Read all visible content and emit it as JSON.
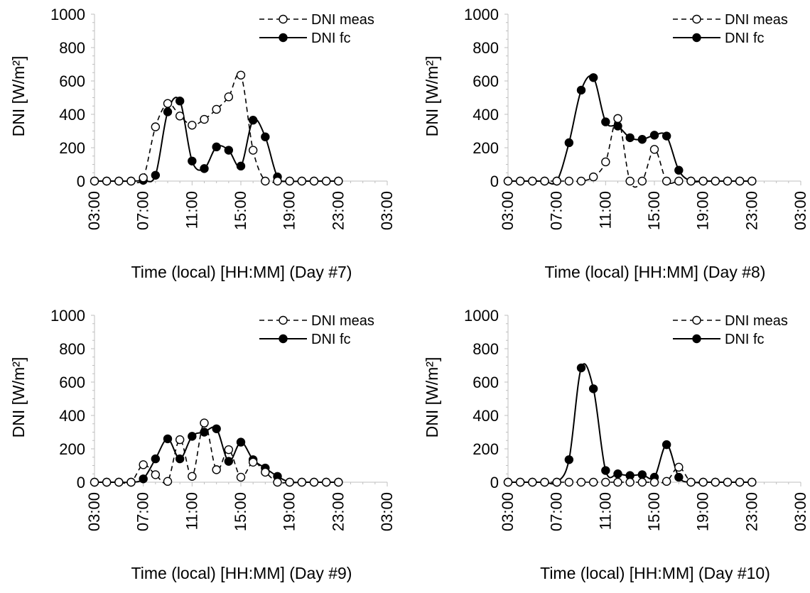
{
  "chart_data": [
    {
      "type": "line",
      "title": "",
      "xlabel": "Time (local) [HH:MM] (Day #7)",
      "ylabel": "DNI [W/m²]",
      "ylim": [
        0,
        1000
      ],
      "y_ticks": [
        "0",
        "200",
        "400",
        "600",
        "800",
        "1000"
      ],
      "xlim": [
        "03:00",
        "27:00"
      ],
      "x_tick_labels": [
        "03:00",
        "07:00",
        "11:00",
        "15:00",
        "19:00",
        "23:00",
        "03:00"
      ],
      "grid": false,
      "legend_position": "top-right",
      "x": [
        "03:00",
        "04:00",
        "05:00",
        "06:00",
        "07:00",
        "08:00",
        "09:00",
        "10:00",
        "11:00",
        "12:00",
        "13:00",
        "14:00",
        "15:00",
        "16:00",
        "17:00",
        "18:00",
        "19:00",
        "20:00",
        "21:00",
        "22:00",
        "23:00"
      ],
      "series": [
        {
          "name": "DNI meas",
          "style": "dashed-open-marker",
          "values": [
            0,
            0,
            0,
            0,
            20,
            325,
            465,
            390,
            335,
            370,
            430,
            505,
            635,
            185,
            0,
            0,
            0,
            0,
            0,
            0,
            0
          ]
        },
        {
          "name": "DNI fc",
          "style": "solid-filled-marker",
          "values": [
            0,
            0,
            0,
            0,
            5,
            35,
            415,
            480,
            120,
            75,
            205,
            185,
            90,
            365,
            265,
            25,
            0,
            0,
            0,
            0,
            0
          ]
        }
      ]
    },
    {
      "type": "line",
      "title": "",
      "xlabel": "Time (local) [HH:MM] (Day #8)",
      "ylabel": "DNI [W/m²]",
      "ylim": [
        0,
        1000
      ],
      "y_ticks": [
        "0",
        "200",
        "400",
        "600",
        "800",
        "1000"
      ],
      "xlim": [
        "03:00",
        "27:00"
      ],
      "x_tick_labels": [
        "03:00",
        "07:00",
        "11:00",
        "15:00",
        "19:00",
        "23:00",
        "03:00"
      ],
      "grid": false,
      "legend_position": "top-right",
      "x": [
        "03:00",
        "04:00",
        "05:00",
        "06:00",
        "07:00",
        "08:00",
        "09:00",
        "10:00",
        "11:00",
        "12:00",
        "13:00",
        "14:00",
        "15:00",
        "16:00",
        "17:00",
        "18:00",
        "19:00",
        "20:00",
        "21:00",
        "22:00",
        "23:00"
      ],
      "series": [
        {
          "name": "DNI meas",
          "style": "dashed-open-marker",
          "values": [
            0,
            0,
            0,
            0,
            0,
            0,
            0,
            25,
            115,
            375,
            0,
            0,
            190,
            0,
            0,
            0,
            0,
            0,
            0,
            0,
            0
          ]
        },
        {
          "name": "DNI fc",
          "style": "solid-filled-marker",
          "values": [
            0,
            0,
            0,
            0,
            0,
            230,
            545,
            620,
            355,
            330,
            260,
            250,
            275,
            270,
            65,
            0,
            0,
            0,
            0,
            0,
            0
          ]
        }
      ]
    },
    {
      "type": "line",
      "title": "",
      "xlabel": "Time (local) [HH:MM] (Day #9)",
      "ylabel": "DNI [W/m²]",
      "ylim": [
        0,
        1000
      ],
      "y_ticks": [
        "0",
        "200",
        "400",
        "600",
        "800",
        "1000"
      ],
      "xlim": [
        "03:00",
        "27:00"
      ],
      "x_tick_labels": [
        "03:00",
        "07:00",
        "11:00",
        "15:00",
        "19:00",
        "23:00",
        "03:00"
      ],
      "grid": false,
      "legend_position": "top-right",
      "x": [
        "03:00",
        "04:00",
        "05:00",
        "06:00",
        "07:00",
        "08:00",
        "09:00",
        "10:00",
        "11:00",
        "12:00",
        "13:00",
        "14:00",
        "15:00",
        "16:00",
        "17:00",
        "18:00",
        "19:00",
        "20:00",
        "21:00",
        "22:00",
        "23:00"
      ],
      "series": [
        {
          "name": "DNI meas",
          "style": "dashed-open-marker",
          "values": [
            0,
            0,
            0,
            0,
            105,
            45,
            5,
            255,
            35,
            355,
            75,
            195,
            30,
            120,
            60,
            0,
            0,
            0,
            0,
            0,
            0
          ]
        },
        {
          "name": "DNI fc",
          "style": "solid-filled-marker",
          "values": [
            0,
            0,
            0,
            0,
            20,
            140,
            260,
            140,
            275,
            300,
            320,
            125,
            240,
            135,
            85,
            35,
            0,
            0,
            0,
            0,
            0
          ]
        }
      ]
    },
    {
      "type": "line",
      "title": "",
      "xlabel": "Time (local) [HH:MM] (Day #10)",
      "ylabel": "DNI [W/m²]",
      "ylim": [
        0,
        1000
      ],
      "y_ticks": [
        "0",
        "200",
        "400",
        "600",
        "800",
        "1000"
      ],
      "xlim": [
        "03:00",
        "27:00"
      ],
      "x_tick_labels": [
        "03:00",
        "07:00",
        "11:00",
        "15:00",
        "19:00",
        "23:00",
        "03:00"
      ],
      "grid": false,
      "legend_position": "top-right",
      "x": [
        "03:00",
        "04:00",
        "05:00",
        "06:00",
        "07:00",
        "08:00",
        "09:00",
        "10:00",
        "11:00",
        "12:00",
        "13:00",
        "14:00",
        "15:00",
        "16:00",
        "17:00",
        "18:00",
        "19:00",
        "20:00",
        "21:00",
        "22:00",
        "23:00"
      ],
      "series": [
        {
          "name": "DNI meas",
          "style": "dashed-open-marker",
          "values": [
            0,
            0,
            0,
            0,
            0,
            0,
            0,
            0,
            0,
            0,
            0,
            0,
            0,
            5,
            90,
            0,
            0,
            0,
            0,
            0,
            0
          ]
        },
        {
          "name": "DNI fc",
          "style": "solid-filled-marker",
          "values": [
            0,
            0,
            0,
            0,
            0,
            135,
            685,
            560,
            70,
            50,
            40,
            45,
            30,
            225,
            30,
            0,
            0,
            0,
            0,
            0,
            0
          ]
        }
      ]
    }
  ]
}
